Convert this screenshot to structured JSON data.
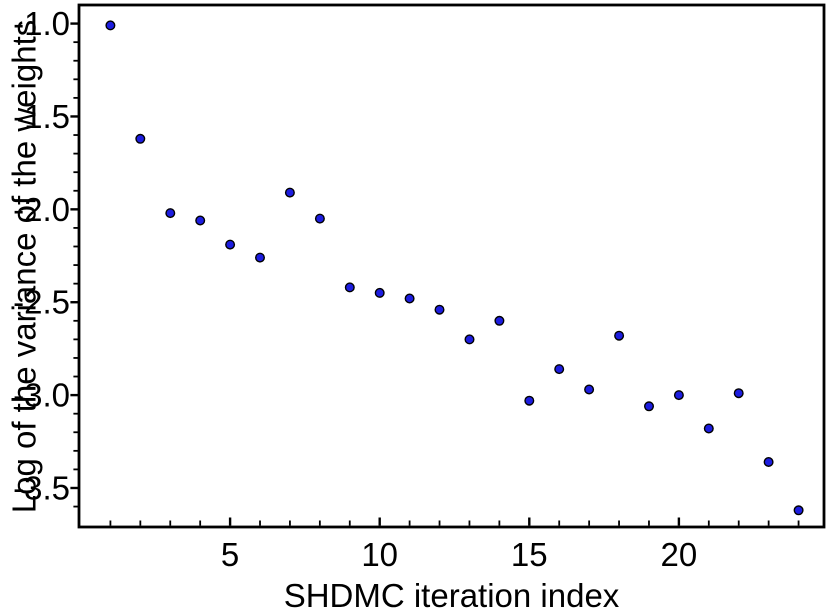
{
  "chart_data": {
    "type": "scatter",
    "title": "",
    "xlabel": "SHDMC iteration index",
    "ylabel": "Log of the variance of the weights",
    "x": [
      1,
      2,
      3,
      4,
      5,
      6,
      7,
      8,
      9,
      10,
      11,
      12,
      13,
      14,
      15,
      16,
      17,
      18,
      19,
      20,
      21,
      22,
      23,
      24
    ],
    "y": [
      -1.01,
      -1.62,
      -2.02,
      -2.06,
      -2.19,
      -2.26,
      -1.91,
      -2.05,
      -2.42,
      -2.45,
      -2.48,
      -2.54,
      -2.7,
      -2.6,
      -3.03,
      -2.86,
      -2.97,
      -2.68,
      -3.06,
      -3.0,
      -3.18,
      -2.99,
      -3.36,
      -3.62
    ],
    "xlim": [
      -0.05,
      24.85
    ],
    "ylim": [
      -3.71,
      -0.9
    ],
    "x_major_ticks": [
      5,
      10,
      15,
      20
    ],
    "x_tick_labels": [
      "5",
      "10",
      "15",
      "20"
    ],
    "x_minor_tick_step": 1,
    "y_major_ticks": [
      -1.0,
      -1.5,
      -2.0,
      -2.5,
      -3.0,
      -3.5
    ],
    "y_tick_labels": [
      "-1.0",
      "-1.5",
      "-2.0",
      "-2.5",
      "-3.0",
      "-3.5"
    ],
    "y_minor_tick_step": 0.1,
    "grid": false,
    "legend": null,
    "marker": {
      "shape": "circle",
      "fill": "#1d1de0",
      "stroke": "#000000"
    },
    "colors": {
      "axis": "#000000",
      "text": "#000000",
      "background": "#ffffff"
    }
  }
}
